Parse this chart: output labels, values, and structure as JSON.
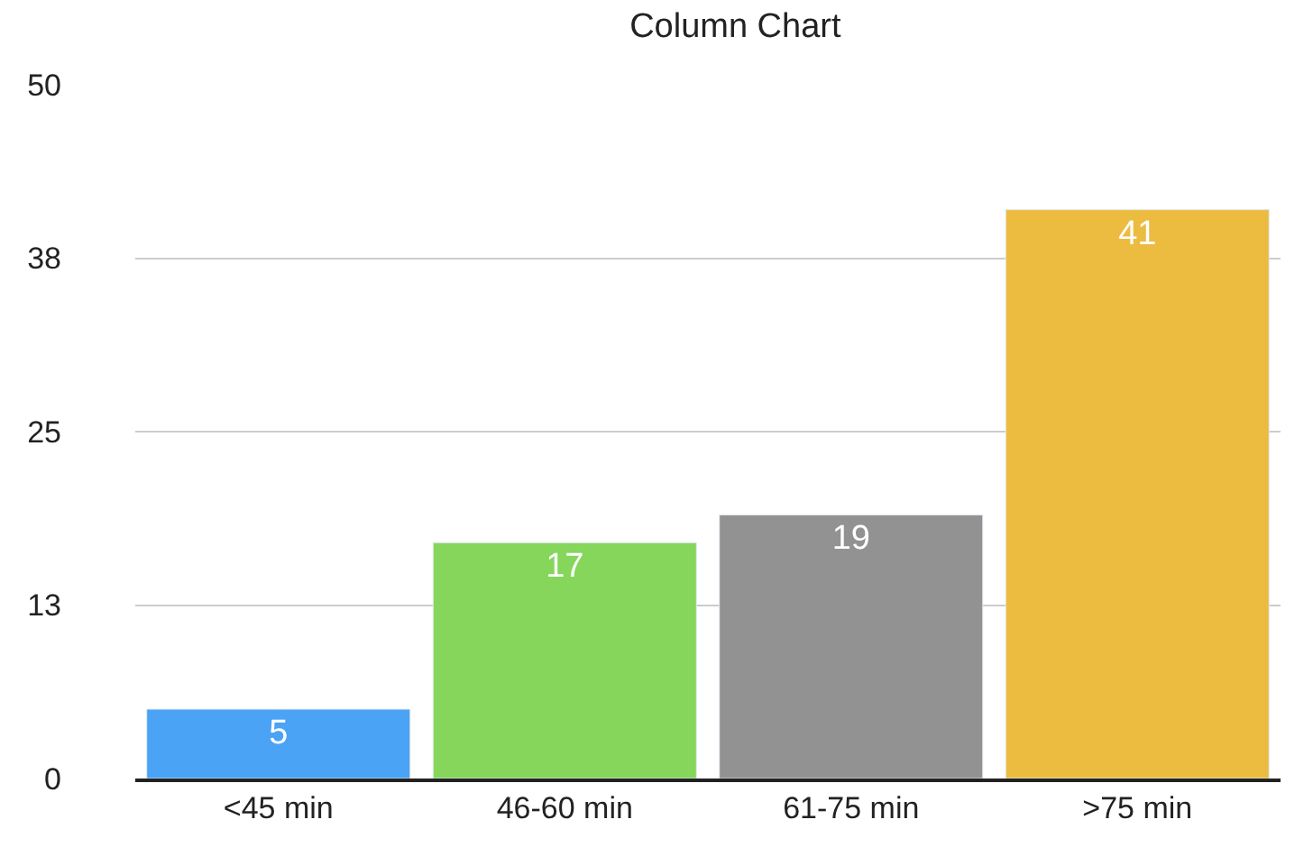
{
  "chart_data": {
    "type": "bar",
    "title": "Column Chart",
    "categories": [
      "<45 min",
      "46-60 min",
      "61-75 min",
      ">75 min"
    ],
    "values": [
      5,
      17,
      19,
      41
    ],
    "colors": [
      "#4aa3f4",
      "#85d65a",
      "#929292",
      "#ecbc41"
    ],
    "ylim": [
      0,
      50
    ],
    "yticks": [
      0,
      {
        "value": 12.5,
        "label": "13"
      },
      25,
      {
        "value": 37.5,
        "label": "38"
      },
      50
    ],
    "grid": "y",
    "data_labels": true
  }
}
